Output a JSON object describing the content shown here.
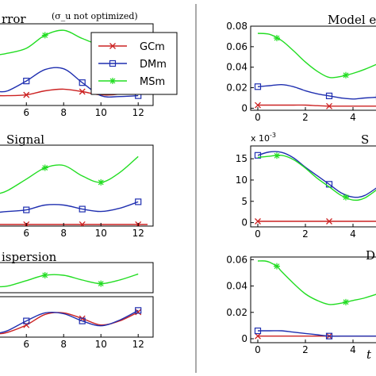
{
  "chart_data": [
    {
      "id": "left-1",
      "type": "line",
      "title": "rror",
      "annotation": "(σ_u not optimized)",
      "xlim": [
        4.5,
        12.8
      ],
      "ylim": [
        0,
        1
      ],
      "series": [
        {
          "name": "GCm",
          "color": "#cc2222",
          "marker": "x",
          "x": [
            4.5,
            5,
            6,
            7,
            8,
            9,
            10,
            11,
            12
          ],
          "y": [
            0.12,
            0.12,
            0.13,
            0.18,
            0.2,
            0.17,
            0.13,
            0.14,
            0.2
          ]
        },
        {
          "name": "DMm",
          "color": "#1f2fb0",
          "marker": "s",
          "x": [
            4.5,
            5,
            6,
            7,
            8,
            9,
            10,
            11,
            12
          ],
          "y": [
            0.17,
            0.18,
            0.3,
            0.44,
            0.45,
            0.28,
            0.12,
            0.11,
            0.12
          ]
        },
        {
          "name": "MSm",
          "color": "#22dd22",
          "marker": "*",
          "x": [
            4.5,
            5,
            6,
            7,
            8,
            9,
            10,
            11,
            12
          ],
          "y": [
            0.62,
            0.64,
            0.7,
            0.86,
            0.92,
            0.82,
            0.74,
            0.74,
            0.78
          ]
        }
      ]
    },
    {
      "id": "left-2",
      "type": "line",
      "title": "Signal",
      "xlim": [
        4.5,
        12.8
      ],
      "ylim": [
        0,
        1
      ],
      "series": [
        {
          "name": "GCm",
          "color": "#cc2222",
          "marker": "x",
          "x": [
            4.5,
            12.5
          ],
          "y": [
            0.02,
            0.02
          ]
        },
        {
          "name": "DMm",
          "color": "#1f2fb0",
          "marker": "s",
          "x": [
            4.5,
            5,
            6,
            7,
            8,
            9,
            10,
            11,
            12
          ],
          "y": [
            0.17,
            0.18,
            0.2,
            0.26,
            0.26,
            0.21,
            0.18,
            0.22,
            0.3
          ]
        },
        {
          "name": "MSm",
          "color": "#22dd22",
          "marker": "*",
          "x": [
            4.5,
            5,
            6,
            7,
            8,
            9,
            10,
            11,
            12
          ],
          "y": [
            0.4,
            0.44,
            0.58,
            0.72,
            0.75,
            0.62,
            0.54,
            0.66,
            0.86
          ]
        }
      ]
    },
    {
      "id": "left-3",
      "type": "line",
      "title": "ispersion",
      "xlim": [
        4.5,
        12.8
      ],
      "ylim": [
        0,
        1
      ],
      "series": [
        {
          "name": "MSm",
          "color": "#22dd22",
          "marker": "*",
          "x": [
            4.5,
            5,
            6,
            7,
            8,
            9,
            10,
            11,
            12
          ],
          "y": [
            0.2,
            0.22,
            0.4,
            0.58,
            0.58,
            0.42,
            0.3,
            0.42,
            0.62
          ]
        }
      ]
    },
    {
      "id": "left-4",
      "type": "line",
      "xlim": [
        4.5,
        12.8
      ],
      "ylim": [
        0,
        1
      ],
      "xticks": [
        6,
        8,
        10,
        12
      ],
      "series": [
        {
          "name": "GCm",
          "color": "#cc2222",
          "marker": "x",
          "x": [
            4.5,
            5,
            6,
            7,
            8,
            9,
            10,
            11,
            12
          ],
          "y": [
            0.08,
            0.12,
            0.3,
            0.56,
            0.6,
            0.46,
            0.3,
            0.4,
            0.62
          ]
        },
        {
          "name": "DMm",
          "color": "#1f2fb0",
          "marker": "s",
          "x": [
            4.5,
            5,
            6,
            7,
            8,
            9,
            10,
            11,
            12
          ],
          "y": [
            0.1,
            0.16,
            0.4,
            0.6,
            0.58,
            0.4,
            0.28,
            0.42,
            0.66
          ]
        }
      ]
    },
    {
      "id": "right-1",
      "type": "line",
      "title": "Model e",
      "xlim": [
        -0.3,
        5.2
      ],
      "ylim": [
        -0.002,
        0.08
      ],
      "yticks": [
        0,
        0.02,
        0.04,
        0.06,
        0.08
      ],
      "yticklabels": [
        "0",
        "0.02",
        "0.04",
        "0.06",
        "0.08"
      ],
      "xticks": [
        0,
        2,
        4
      ],
      "series": [
        {
          "name": "GCm",
          "color": "#cc2222",
          "marker": "x",
          "x": [
            0,
            0.5,
            1,
            1.5,
            2,
            2.5,
            3,
            3.5,
            4,
            4.5,
            5.2
          ],
          "y": [
            0.003,
            0.003,
            0.003,
            0.003,
            0.003,
            0.0025,
            0.002,
            0.002,
            0.002,
            0.002,
            0.002
          ]
        },
        {
          "name": "DMm",
          "color": "#1f2fb0",
          "marker": "s",
          "x": [
            0,
            0.5,
            1,
            1.5,
            2,
            2.5,
            3,
            3.5,
            4,
            4.5,
            5.2
          ],
          "y": [
            0.021,
            0.022,
            0.023,
            0.021,
            0.017,
            0.014,
            0.012,
            0.01,
            0.009,
            0.01,
            0.011
          ]
        },
        {
          "name": "MSm",
          "color": "#22dd22",
          "marker": "*",
          "x": [
            0,
            0.5,
            1,
            1.5,
            2,
            2.5,
            3,
            3.5,
            4,
            4.5,
            5.2
          ],
          "y": [
            0.073,
            0.072,
            0.066,
            0.056,
            0.045,
            0.036,
            0.03,
            0.031,
            0.034,
            0.038,
            0.045
          ]
        }
      ]
    },
    {
      "id": "right-2",
      "type": "line",
      "title": "S",
      "exponent": "x 10",
      "exponent_power": "-3",
      "xlim": [
        -0.3,
        5.2
      ],
      "ylim": [
        -1,
        18
      ],
      "yticks": [
        0,
        5,
        10,
        15
      ],
      "yticklabels": [
        "0",
        "5",
        "10",
        "15"
      ],
      "xticks": [
        0,
        2,
        4
      ],
      "series": [
        {
          "name": "GCm",
          "color": "#cc2222",
          "marker": "x",
          "x": [
            0,
            1,
            2,
            3,
            4,
            5.2
          ],
          "y": [
            0.3,
            0.3,
            0.3,
            0.3,
            0.3,
            0.3
          ]
        },
        {
          "name": "DMm",
          "color": "#1f2fb0",
          "marker": "s",
          "x": [
            0,
            0.5,
            1,
            1.5,
            2,
            2.5,
            3,
            3.5,
            4,
            4.5,
            5.2
          ],
          "y": [
            15.8,
            16.6,
            16.5,
            15.2,
            13.0,
            11.0,
            9.0,
            7.0,
            6.0,
            6.4,
            9.0
          ]
        },
        {
          "name": "MSm",
          "color": "#22dd22",
          "marker": "*",
          "x": [
            0,
            0.5,
            1,
            1.5,
            2,
            2.5,
            3,
            3.5,
            4,
            4.5,
            5.2
          ],
          "y": [
            15.3,
            15.6,
            15.8,
            14.8,
            12.8,
            10.4,
            8.4,
            6.4,
            5.3,
            5.8,
            8.6
          ]
        }
      ]
    },
    {
      "id": "right-3",
      "type": "line",
      "title": "D",
      "xlabel": "t",
      "xlim": [
        -0.3,
        5.2
      ],
      "ylim": [
        -0.003,
        0.062
      ],
      "yticks": [
        0,
        0.02,
        0.04,
        0.06
      ],
      "yticklabels": [
        "0",
        "0.02",
        "0.04",
        "0.06"
      ],
      "xticks": [
        0,
        2,
        4
      ],
      "series": [
        {
          "name": "GCm",
          "color": "#cc2222",
          "marker": "x",
          "x": [
            0,
            1,
            2,
            3,
            4,
            5.2
          ],
          "y": [
            0.002,
            0.002,
            0.002,
            0.002,
            0.002,
            0.002
          ]
        },
        {
          "name": "DMm",
          "color": "#1f2fb0",
          "marker": "s",
          "x": [
            0,
            0.5,
            1,
            1.5,
            2,
            2.5,
            3,
            3.5,
            4,
            4.5,
            5.2
          ],
          "y": [
            0.006,
            0.006,
            0.006,
            0.005,
            0.004,
            0.003,
            0.002,
            0.002,
            0.002,
            0.002,
            0.002
          ]
        },
        {
          "name": "MSm",
          "color": "#22dd22",
          "marker": "*",
          "x": [
            0,
            0.3,
            0.5,
            0.8,
            1,
            1.5,
            2,
            2.5,
            3,
            3.5,
            4,
            4.5,
            5.2
          ],
          "y": [
            0.059,
            0.059,
            0.058,
            0.055,
            0.051,
            0.042,
            0.034,
            0.029,
            0.026,
            0.027,
            0.029,
            0.031,
            0.035
          ]
        }
      ]
    }
  ],
  "legend": {
    "placement": "inside top-left panel, right side",
    "entries": [
      {
        "label": "GCm",
        "color": "#cc2222",
        "marker": "x"
      },
      {
        "label": "DMm",
        "color": "#1f2fb0",
        "marker": "s"
      },
      {
        "label": "MSm",
        "color": "#22dd22",
        "marker": "*"
      }
    ]
  }
}
